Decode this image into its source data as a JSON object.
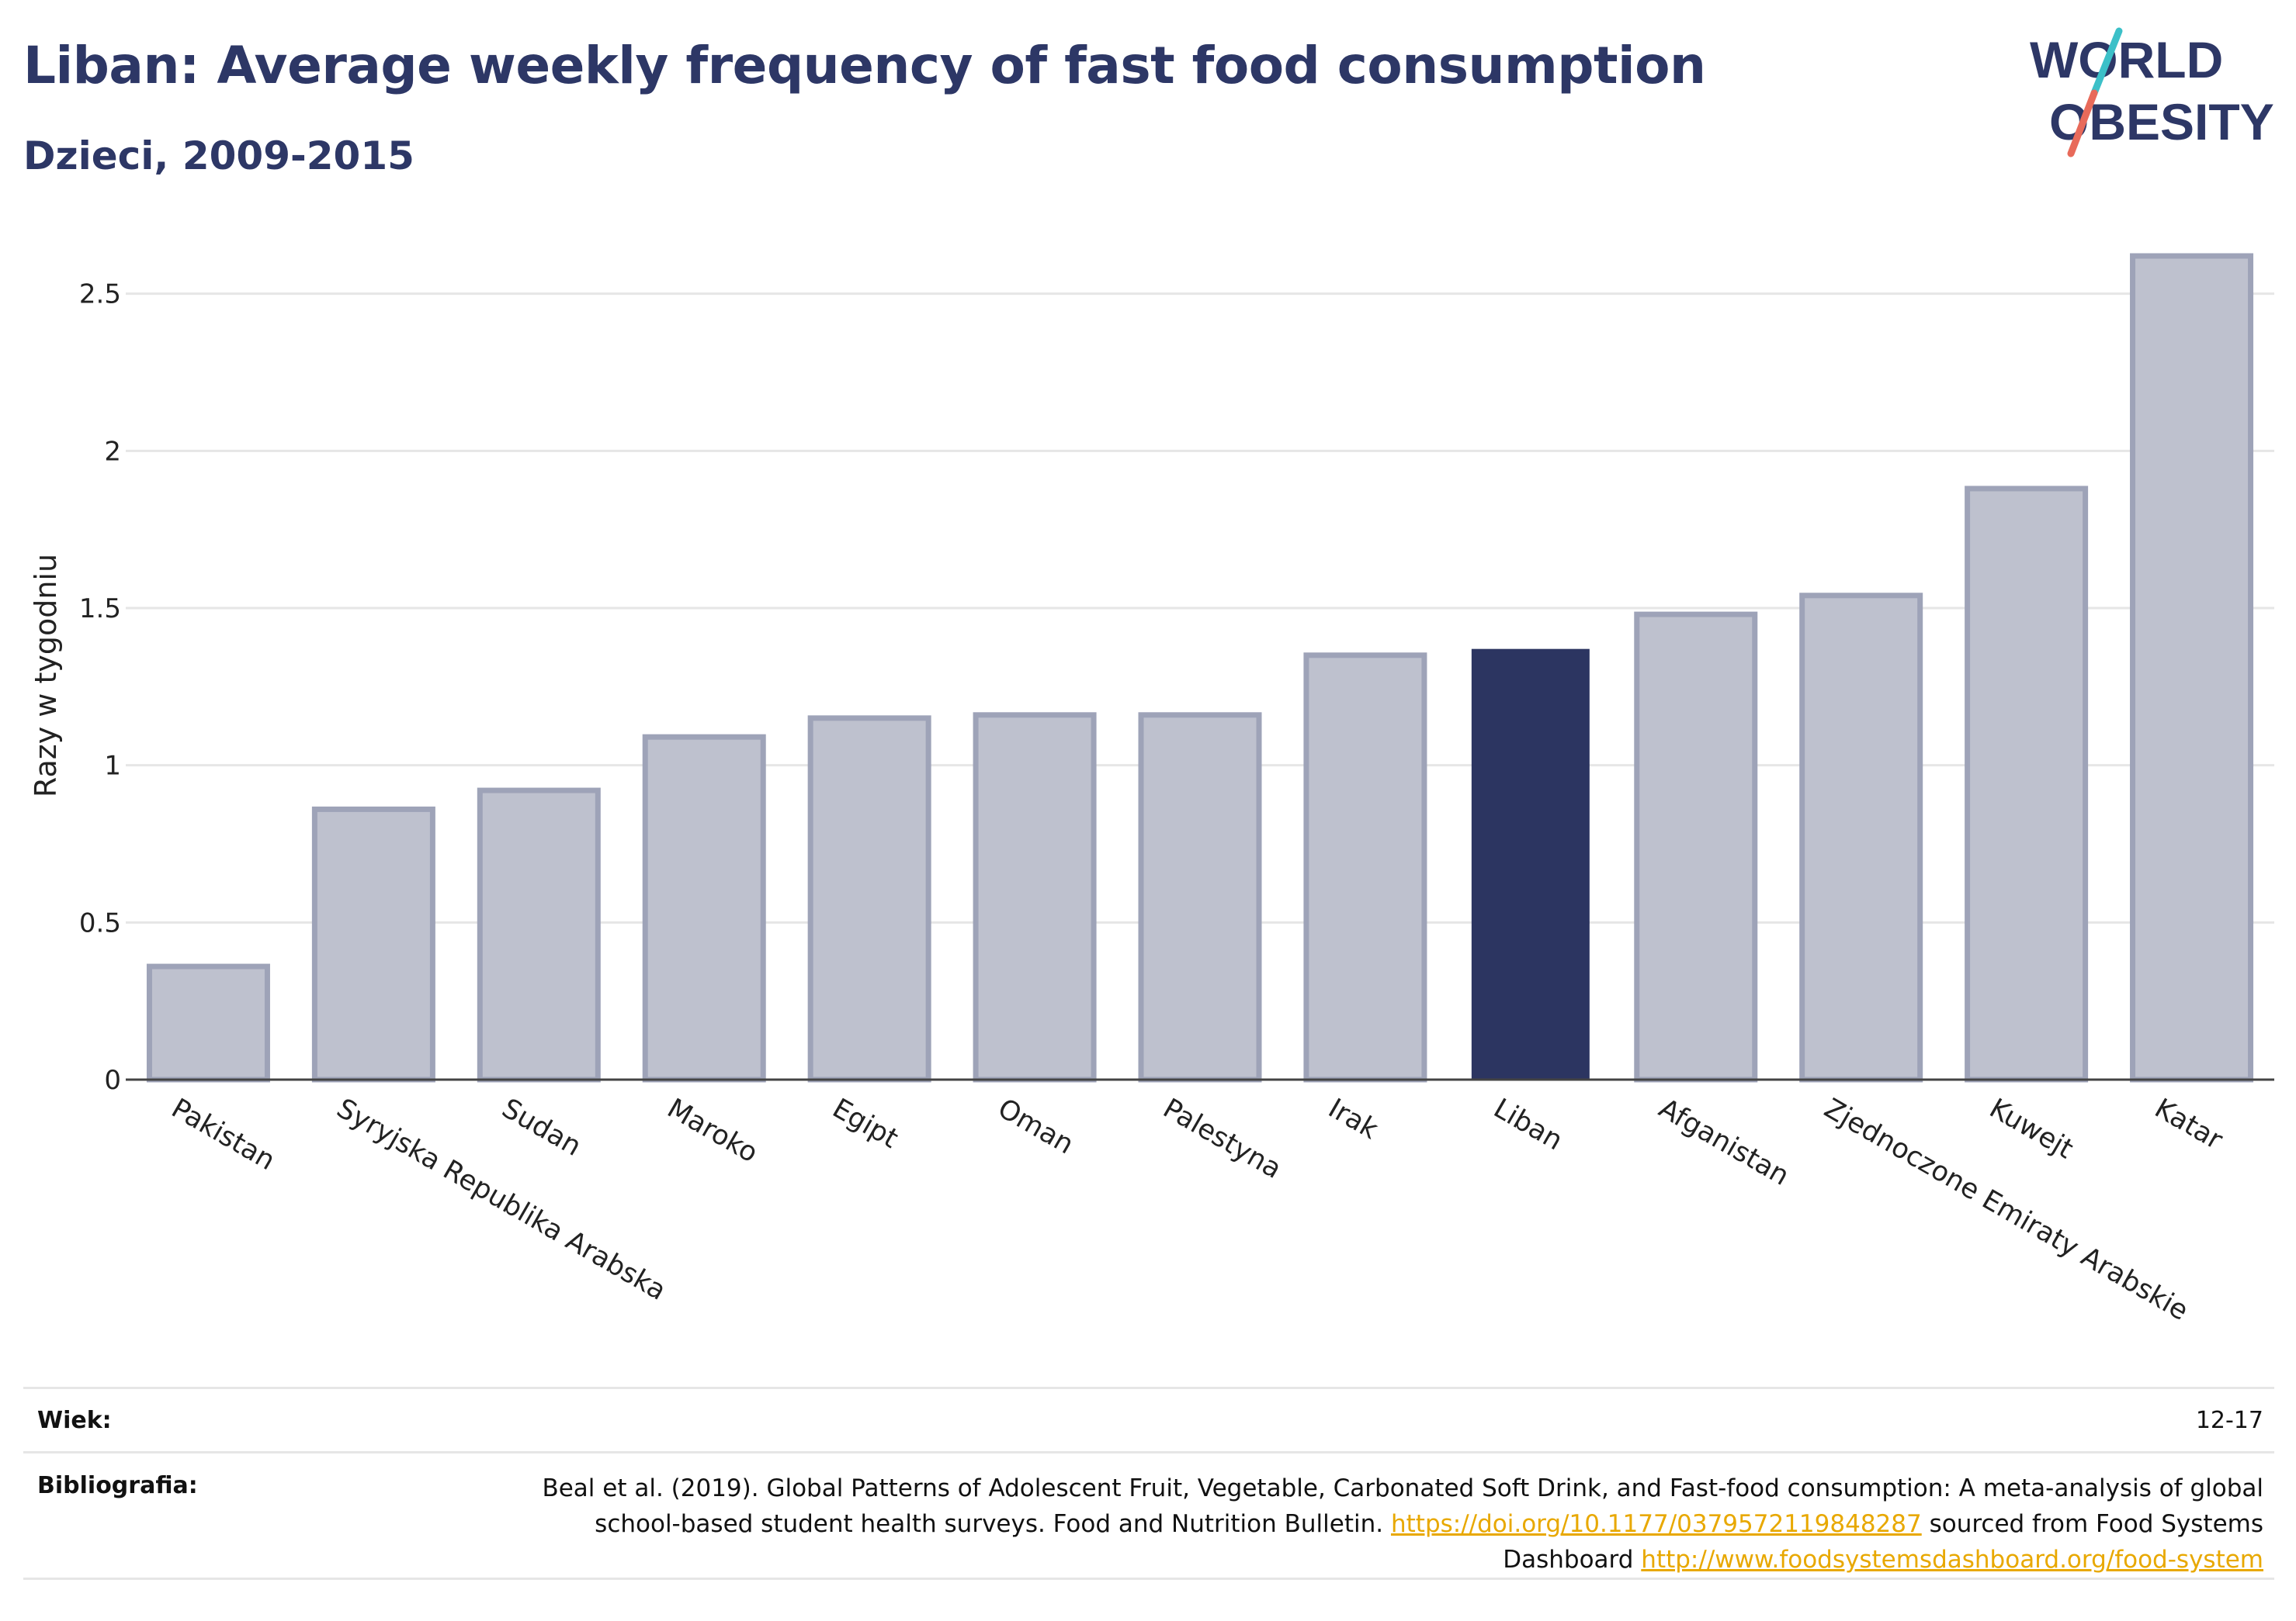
{
  "header": {
    "title": "Liban: Average weekly frequency of fast food consumption",
    "subtitle": "Dzieci, 2009-2015"
  },
  "logo": {
    "line1": "WORLD",
    "line2": "OBESITY",
    "accent_teal": "#3cc0c8",
    "accent_coral": "#e86a5a"
  },
  "chart_data": {
    "type": "bar",
    "title": "Liban: Average weekly frequency of fast food consumption",
    "subtitle": "Dzieci, 2009-2015",
    "ylabel": "Razy w tygodniu",
    "xlabel": "",
    "ylim": [
      0,
      2.62
    ],
    "yticks": [
      0,
      0.5,
      1,
      1.5,
      2,
      2.5
    ],
    "ytick_labels": [
      "0",
      "0.5",
      "1",
      "1.5",
      "2",
      "2.5"
    ],
    "grid": true,
    "categories": [
      "Pakistan",
      "Syryjska Republika Arabska",
      "Sudan",
      "Maroko",
      "Egipt",
      "Oman",
      "Palestyna",
      "Irak",
      "Liban",
      "Afganistan",
      "Zjednoczone Emiraty Arabskie",
      "Kuwejt",
      "Katar"
    ],
    "values": [
      0.36,
      0.86,
      0.92,
      1.09,
      1.15,
      1.16,
      1.16,
      1.35,
      1.37,
      1.48,
      1.54,
      1.88,
      2.62
    ],
    "highlight": "Liban",
    "colors": {
      "bar": "#bec1ce",
      "bar_border": "#9ea3b8",
      "highlight": "#2c3561",
      "grid": "#e6e6e6",
      "axis": "#444444"
    }
  },
  "footer": {
    "age_label": "Wiek:",
    "age_value": "12-17",
    "bib_label": "Bibliografia:",
    "bib_text_1": "Beal et al. (2019). Global Patterns of Adolescent Fruit, Vegetable, Carbonated Soft Drink, and Fast-food consumption: A meta-analysis of global school-based student health surveys. Food and Nutrition Bulletin. ",
    "bib_link_1": "https://doi.org/10.1177/0379572119848287",
    "bib_text_2": " sourced from Food Systems Dashboard ",
    "bib_link_2": "http://www.foodsystemsdashboard.org/food-system",
    "link_color": "#e8a800"
  }
}
